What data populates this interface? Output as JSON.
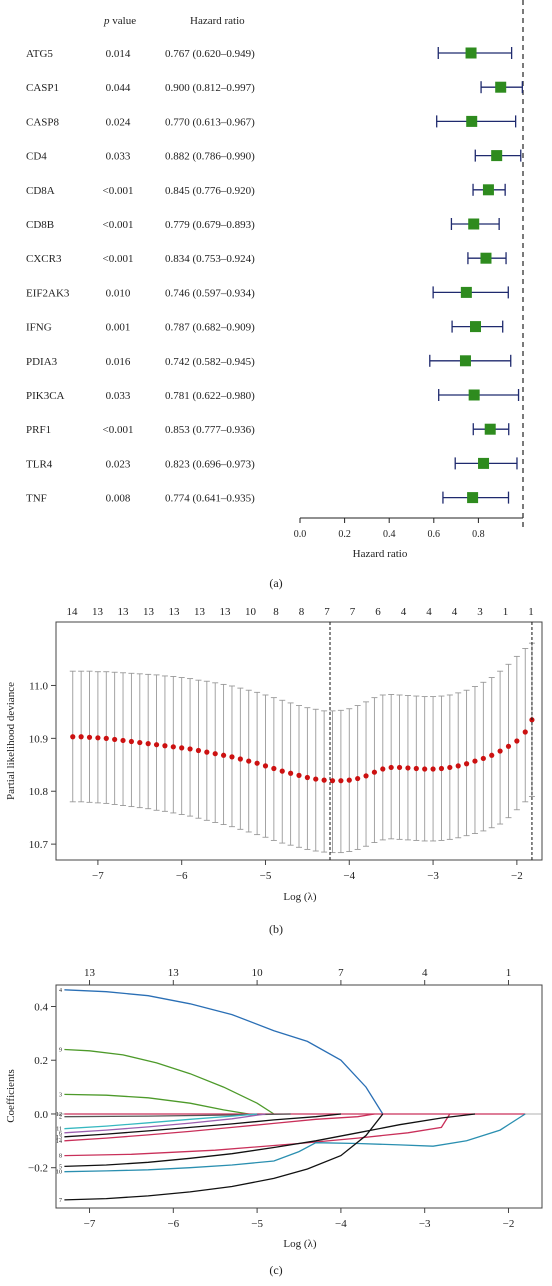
{
  "panel_labels": [
    "(a)",
    "(b)",
    "(c)"
  ],
  "forest": {
    "header_pvalue_italic": "p",
    "header_pvalue_rest": " value",
    "header_hr": "Hazard ratio",
    "rows": [
      {
        "gene": "ATG5",
        "p": "0.014",
        "hr_text": "0.767 (0.620–0.949)"
      },
      {
        "gene": "CASP1",
        "p": "0.044",
        "hr_text": "0.900 (0.812–0.997)"
      },
      {
        "gene": "CASP8",
        "p": "0.024",
        "hr_text": "0.770 (0.613–0.967)"
      },
      {
        "gene": "CD4",
        "p": "0.033",
        "hr_text": "0.882 (0.786–0.990)"
      },
      {
        "gene": "CD8A",
        "p": "<0.001",
        "hr_text": "0.845 (0.776–0.920)"
      },
      {
        "gene": "CD8B",
        "p": "<0.001",
        "hr_text": "0.779 (0.679–0.893)"
      },
      {
        "gene": "CXCR3",
        "p": "<0.001",
        "hr_text": "0.834 (0.753–0.924)"
      },
      {
        "gene": "EIF2AK3",
        "p": "0.010",
        "hr_text": "0.746 (0.597–0.934)"
      },
      {
        "gene": "IFNG",
        "p": "0.001",
        "hr_text": "0.787 (0.682–0.909)"
      },
      {
        "gene": "PDIA3",
        "p": "0.016",
        "hr_text": "0.742 (0.582–0.945)"
      },
      {
        "gene": "PIK3CA",
        "p": "0.033",
        "hr_text": "0.781 (0.622–0.980)"
      },
      {
        "gene": "PRF1",
        "p": "<0.001",
        "hr_text": "0.853 (0.777–0.936)"
      },
      {
        "gene": "TLR4",
        "p": "0.023",
        "hr_text": "0.823 (0.696–0.973)"
      },
      {
        "gene": "TNF",
        "p": "0.008",
        "hr_text": "0.774 (0.641–0.935)"
      }
    ]
  },
  "chart_data": [
    {
      "type": "forest",
      "xlabel": "Hazard ratio",
      "xlim": [
        0,
        1.0
      ],
      "xticks": [
        0.0,
        0.2,
        0.4,
        0.6,
        0.8
      ],
      "tick_labels": [
        "0.0",
        "0.2",
        "0.4",
        "0.6",
        "0.8"
      ],
      "reference_line": 1.0,
      "point_color": "#2e8b1e",
      "ci_color": "#1f2a6e",
      "estimates": [
        0.767,
        0.9,
        0.77,
        0.882,
        0.845,
        0.779,
        0.834,
        0.746,
        0.787,
        0.742,
        0.781,
        0.853,
        0.823,
        0.774
      ],
      "lower": [
        0.62,
        0.812,
        0.613,
        0.786,
        0.776,
        0.679,
        0.753,
        0.597,
        0.682,
        0.582,
        0.622,
        0.777,
        0.696,
        0.641
      ],
      "upper": [
        0.949,
        0.997,
        0.967,
        0.99,
        0.92,
        0.893,
        0.924,
        0.934,
        0.909,
        0.945,
        0.98,
        0.936,
        0.973,
        0.935
      ]
    },
    {
      "type": "scatter",
      "xlabel": "Log (λ)",
      "ylabel": "Partial likelihood deviance",
      "xlim": [
        -7.5,
        -1.7
      ],
      "ylim": [
        10.67,
        11.12
      ],
      "xticks": [
        -7,
        -6,
        -5,
        -4,
        -3,
        -2
      ],
      "xtick_labels": [
        "−7",
        "−6",
        "−5",
        "−4",
        "−3",
        "−2"
      ],
      "yticks": [
        10.7,
        10.8,
        10.9,
        11.0
      ],
      "ytick_labels": [
        "10.7",
        "10.8",
        "10.9",
        "11.0"
      ],
      "top_axis_labels": [
        "14",
        "13",
        "13",
        "13",
        "13",
        "13",
        "13",
        "10",
        "8",
        "8",
        "7",
        "7",
        "6",
        "4",
        "4",
        "4",
        "3",
        "1",
        "1"
      ],
      "top_axis_positions": [
        -7.3,
        -6.95,
        -6.6,
        -6.25,
        -5.9,
        -5.55,
        -5.2,
        -4.85,
        -4.5,
        -4.15,
        -3.8,
        -3.45,
        -3.1,
        -2.75,
        -2.4,
        -2.05,
        -1.7,
        -1.35,
        -1.0
      ],
      "lambda_min": -4.23,
      "lambda_1se": -1.82,
      "point_color": "#cc1111",
      "errorbar_color": "#999999",
      "x": [
        -7.3,
        -7.2,
        -7.1,
        -7.0,
        -6.9,
        -6.8,
        -6.7,
        -6.6,
        -6.5,
        -6.4,
        -6.3,
        -6.2,
        -6.1,
        -6.0,
        -5.9,
        -5.8,
        -5.7,
        -5.6,
        -5.5,
        -5.4,
        -5.3,
        -5.2,
        -5.1,
        -5.0,
        -4.9,
        -4.8,
        -4.7,
        -4.6,
        -4.5,
        -4.4,
        -4.3,
        -4.2,
        -4.1,
        -4.0,
        -3.9,
        -3.8,
        -3.7,
        -3.6,
        -3.5,
        -3.4,
        -3.3,
        -3.2,
        -3.1,
        -3.0,
        -2.9,
        -2.8,
        -2.7,
        -2.6,
        -2.5,
        -2.4,
        -2.3,
        -2.2,
        -2.1,
        -2.0,
        -1.9,
        -1.82
      ],
      "mean": [
        10.903,
        10.903,
        10.902,
        10.901,
        10.9,
        10.898,
        10.896,
        10.894,
        10.892,
        10.89,
        10.888,
        10.886,
        10.884,
        10.882,
        10.88,
        10.877,
        10.874,
        10.871,
        10.868,
        10.865,
        10.861,
        10.857,
        10.853,
        10.848,
        10.843,
        10.838,
        10.834,
        10.83,
        10.826,
        10.823,
        10.821,
        10.82,
        10.82,
        10.821,
        10.824,
        10.829,
        10.836,
        10.842,
        10.845,
        10.845,
        10.844,
        10.843,
        10.842,
        10.842,
        10.843,
        10.845,
        10.848,
        10.852,
        10.857,
        10.862,
        10.868,
        10.876,
        10.885,
        10.895,
        10.912,
        10.935
      ],
      "upper": [
        11.027,
        11.027,
        11.027,
        11.026,
        11.026,
        11.025,
        11.024,
        11.023,
        11.022,
        11.021,
        11.02,
        11.018,
        11.017,
        11.015,
        11.013,
        11.01,
        11.008,
        11.005,
        11.002,
        10.999,
        10.995,
        10.991,
        10.987,
        10.982,
        10.977,
        10.972,
        10.967,
        10.962,
        10.958,
        10.955,
        10.952,
        10.952,
        10.953,
        10.956,
        10.962,
        10.969,
        10.977,
        10.982,
        10.983,
        10.982,
        10.981,
        10.98,
        10.979,
        10.979,
        10.98,
        10.982,
        10.986,
        10.991,
        10.998,
        11.006,
        11.015,
        11.027,
        11.04,
        11.055,
        11.07,
        11.08
      ],
      "lower": [
        10.78,
        10.78,
        10.779,
        10.778,
        10.777,
        10.775,
        10.773,
        10.771,
        10.769,
        10.767,
        10.764,
        10.762,
        10.759,
        10.756,
        10.753,
        10.749,
        10.745,
        10.741,
        10.737,
        10.733,
        10.728,
        10.723,
        10.718,
        10.713,
        10.707,
        10.702,
        10.698,
        10.694,
        10.69,
        10.687,
        10.685,
        10.684,
        10.684,
        10.686,
        10.69,
        10.696,
        10.703,
        10.708,
        10.71,
        10.709,
        10.708,
        10.707,
        10.706,
        10.706,
        10.707,
        10.709,
        10.712,
        10.716,
        10.72,
        10.725,
        10.731,
        10.738,
        10.75,
        10.765,
        10.78,
        10.79
      ]
    },
    {
      "type": "line",
      "xlabel": "Log (λ)",
      "ylabel": "Coefficients",
      "xlim": [
        -7.4,
        -1.6
      ],
      "ylim": [
        -0.35,
        0.48
      ],
      "xticks": [
        -7,
        -6,
        -5,
        -4,
        -3,
        -2
      ],
      "xtick_labels": [
        "−7",
        "−6",
        "−5",
        "−4",
        "−3",
        "−2"
      ],
      "yticks": [
        -0.2,
        0.0,
        0.2,
        0.4
      ],
      "ytick_labels": [
        "−0.2",
        "0.0",
        "0.2",
        "0.4"
      ],
      "top_axis_labels": [
        "13",
        "13",
        "10",
        "7",
        "4",
        "1"
      ],
      "top_axis_positions": [
        -7.0,
        -6.0,
        -5.0,
        -4.0,
        -3.0,
        -2.0
      ],
      "zero_line": true,
      "series": [
        {
          "label": "4",
          "color": "#2a6fb5",
          "points": [
            [
              -7.3,
              0.462
            ],
            [
              -6.8,
              0.455
            ],
            [
              -6.3,
              0.44
            ],
            [
              -5.8,
              0.41
            ],
            [
              -5.3,
              0.37
            ],
            [
              -4.8,
              0.31
            ],
            [
              -4.4,
              0.27
            ],
            [
              -4.0,
              0.2
            ],
            [
              -3.7,
              0.1
            ],
            [
              -3.5,
              0.0
            ]
          ]
        },
        {
          "label": "9",
          "color": "#4d9a2a",
          "points": [
            [
              -7.3,
              0.24
            ],
            [
              -7.0,
              0.235
            ],
            [
              -6.6,
              0.22
            ],
            [
              -6.2,
              0.19
            ],
            [
              -5.8,
              0.15
            ],
            [
              -5.4,
              0.1
            ],
            [
              -5.0,
              0.04
            ],
            [
              -4.8,
              0.0
            ]
          ]
        },
        {
          "label": "3",
          "color": "#4d9a2a",
          "points": [
            [
              -7.3,
              0.073
            ],
            [
              -6.8,
              0.07
            ],
            [
              -6.3,
              0.06
            ],
            [
              -5.8,
              0.04
            ],
            [
              -5.4,
              0.015
            ],
            [
              -5.1,
              0.0
            ]
          ]
        },
        {
          "label": "12",
          "color": "#c9305a",
          "points": [
            [
              -7.3,
              0.0
            ],
            [
              -4.5,
              0.0
            ],
            [
              -3.5,
              0.0
            ],
            [
              -1.8,
              0.0
            ]
          ]
        },
        {
          "label": "2",
          "color": "#555555",
          "points": [
            [
              -7.3,
              -0.01
            ],
            [
              -6.3,
              -0.008
            ],
            [
              -5.3,
              -0.004
            ],
            [
              -4.6,
              0.0
            ]
          ]
        },
        {
          "label": "11",
          "color": "#36b8c0",
          "points": [
            [
              -7.3,
              -0.055
            ],
            [
              -6.8,
              -0.045
            ],
            [
              -6.3,
              -0.033
            ],
            [
              -5.8,
              -0.02
            ],
            [
              -5.3,
              -0.008
            ],
            [
              -5.0,
              0.0
            ]
          ]
        },
        {
          "label": "6",
          "color": "#9b5fb0",
          "points": [
            [
              -7.3,
              -0.07
            ],
            [
              -6.8,
              -0.06
            ],
            [
              -6.3,
              -0.048
            ],
            [
              -5.8,
              -0.034
            ],
            [
              -5.3,
              -0.018
            ],
            [
              -4.9,
              0.0
            ]
          ]
        },
        {
          "label": "13",
          "color": "#111111",
          "points": [
            [
              -7.3,
              -0.085
            ],
            [
              -6.8,
              -0.075
            ],
            [
              -6.3,
              -0.063
            ],
            [
              -5.8,
              -0.05
            ],
            [
              -5.3,
              -0.037
            ],
            [
              -4.8,
              -0.022
            ],
            [
              -4.3,
              -0.01
            ],
            [
              -4.0,
              0.0
            ]
          ]
        },
        {
          "label": "14",
          "color": "#c9305a",
          "points": [
            [
              -7.3,
              -0.1
            ],
            [
              -6.8,
              -0.09
            ],
            [
              -6.3,
              -0.078
            ],
            [
              -5.8,
              -0.065
            ],
            [
              -5.3,
              -0.05
            ],
            [
              -4.8,
              -0.035
            ],
            [
              -4.3,
              -0.02
            ],
            [
              -3.8,
              -0.01
            ],
            [
              -3.6,
              0.0
            ]
          ]
        },
        {
          "label": "8",
          "color": "#c9305a",
          "points": [
            [
              -7.3,
              -0.155
            ],
            [
              -6.5,
              -0.15
            ],
            [
              -5.5,
              -0.135
            ],
            [
              -4.5,
              -0.11
            ],
            [
              -3.8,
              -0.09
            ],
            [
              -3.2,
              -0.07
            ],
            [
              -2.8,
              -0.05
            ],
            [
              -2.7,
              0.0
            ]
          ]
        },
        {
          "label": "5",
          "color": "#111111",
          "points": [
            [
              -7.3,
              -0.195
            ],
            [
              -6.8,
              -0.19
            ],
            [
              -6.3,
              -0.18
            ],
            [
              -5.8,
              -0.165
            ],
            [
              -5.3,
              -0.148
            ],
            [
              -4.8,
              -0.125
            ],
            [
              -4.3,
              -0.1
            ],
            [
              -3.8,
              -0.07
            ],
            [
              -3.3,
              -0.04
            ],
            [
              -2.8,
              -0.015
            ],
            [
              -2.4,
              0.0
            ]
          ]
        },
        {
          "label": "10",
          "color": "#2a8fb0",
          "points": [
            [
              -7.3,
              -0.215
            ],
            [
              -6.8,
              -0.212
            ],
            [
              -6.3,
              -0.208
            ],
            [
              -5.8,
              -0.2
            ],
            [
              -5.3,
              -0.19
            ],
            [
              -4.8,
              -0.175
            ],
            [
              -4.5,
              -0.14
            ],
            [
              -4.3,
              -0.107
            ],
            [
              -3.8,
              -0.11
            ],
            [
              -3.3,
              -0.115
            ],
            [
              -2.9,
              -0.12
            ],
            [
              -2.5,
              -0.1
            ],
            [
              -2.1,
              -0.06
            ],
            [
              -1.8,
              0.0
            ]
          ]
        },
        {
          "label": "7",
          "color": "#111111",
          "points": [
            [
              -7.3,
              -0.32
            ],
            [
              -6.8,
              -0.315
            ],
            [
              -6.3,
              -0.305
            ],
            [
              -5.8,
              -0.29
            ],
            [
              -5.3,
              -0.27
            ],
            [
              -4.8,
              -0.24
            ],
            [
              -4.4,
              -0.205
            ],
            [
              -4.0,
              -0.155
            ],
            [
              -3.7,
              -0.08
            ],
            [
              -3.5,
              0.0
            ]
          ]
        }
      ]
    }
  ]
}
